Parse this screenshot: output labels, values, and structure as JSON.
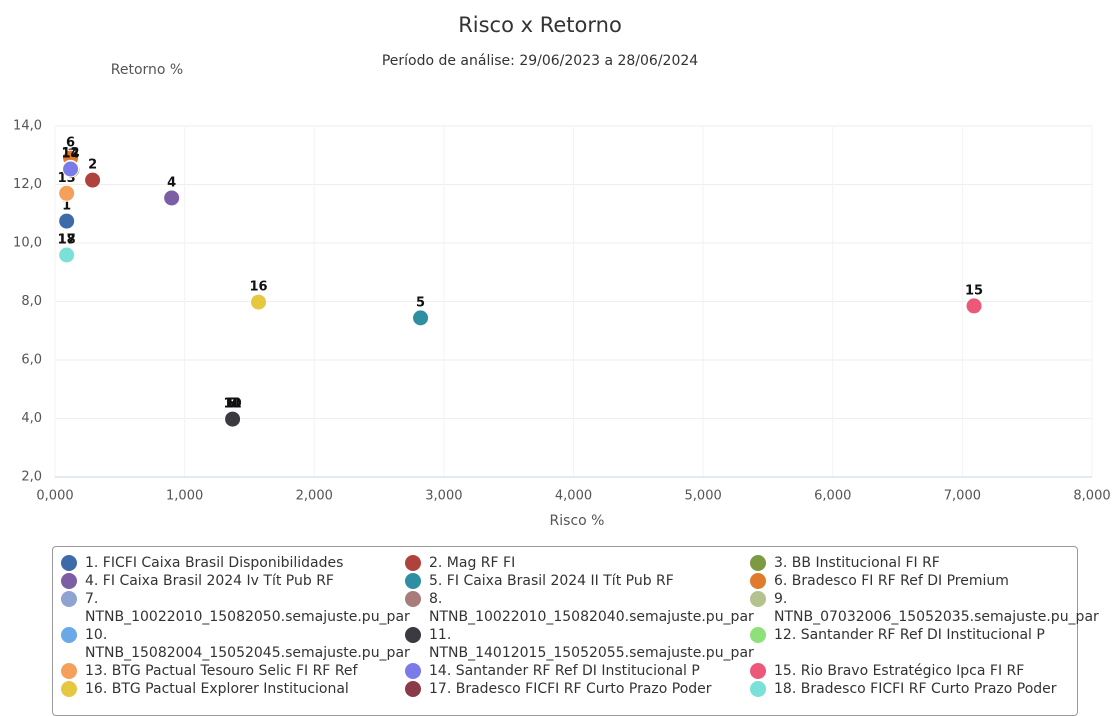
{
  "chart_data": {
    "type": "scatter",
    "title": "Risco x Retorno",
    "subtitle": "Período de análise: 29/06/2023 a 28/06/2024",
    "x_label": "Risco %",
    "y_label": "Retorno %",
    "xlim": [
      0,
      8
    ],
    "ylim": [
      2,
      14
    ],
    "xticks": [
      {
        "value": 0,
        "label": "0,000"
      },
      {
        "value": 1,
        "label": "1,000"
      },
      {
        "value": 2,
        "label": "2,000"
      },
      {
        "value": 3,
        "label": "3,000"
      },
      {
        "value": 4,
        "label": "4,000"
      },
      {
        "value": 5,
        "label": "5,000"
      },
      {
        "value": 6,
        "label": "6,000"
      },
      {
        "value": 7,
        "label": "7,000"
      },
      {
        "value": 8,
        "label": "8,000"
      }
    ],
    "yticks": [
      {
        "value": 2,
        "label": "2,0"
      },
      {
        "value": 4,
        "label": "4,0"
      },
      {
        "value": 6,
        "label": "6,0"
      },
      {
        "value": 8,
        "label": "8,0"
      },
      {
        "value": 10,
        "label": "10,0"
      },
      {
        "value": 12,
        "label": "12,0"
      },
      {
        "value": 14,
        "label": "14,0"
      }
    ],
    "grid": true,
    "series": [
      {
        "name": "1. FICFI Caixa Brasil Disponibilidades",
        "label": "1",
        "color": "#3d6aa8",
        "x": [
          0.09
        ],
        "values": [
          10.75
        ]
      },
      {
        "name": "2. Mag RF FI",
        "label": "2",
        "color": "#b0423e",
        "x": [
          0.29
        ],
        "values": [
          12.15
        ]
      },
      {
        "name": "3. BB Institucional FI RF",
        "label": "3",
        "color": "#7c9a42",
        "x": [
          0.13
        ],
        "values": [
          12.5
        ]
      },
      {
        "name": "4. FI Caixa Brasil 2024 Iv Tít Pub RF",
        "label": "4",
        "color": "#7b5ea3",
        "x": [
          0.9
        ],
        "values": [
          11.54
        ]
      },
      {
        "name": "5. FI Caixa Brasil 2024 II Tít Pub RF",
        "label": "5",
        "color": "#2e8fa3",
        "x": [
          2.82
        ],
        "values": [
          7.44
        ]
      },
      {
        "name": "6. Bradesco FI RF Ref DI Premium",
        "label": "6",
        "color": "#e07b2e",
        "x": [
          0.12
        ],
        "values": [
          12.9
        ]
      },
      {
        "name": "7. NTNB_10022010_15082050.semajuste.pu_par",
        "label": "7",
        "color": "#8ea3cf",
        "x": [
          1.37
        ],
        "values": [
          3.98
        ]
      },
      {
        "name": "8. NTNB_10022010_15082040.semajuste.pu_par",
        "label": "8",
        "color": "#a87c7a",
        "x": [
          1.37
        ],
        "values": [
          3.98
        ]
      },
      {
        "name": "9. NTNB_07032006_15052035.semajuste.pu_par",
        "label": "9",
        "color": "#b3c28e",
        "x": [
          1.37
        ],
        "values": [
          3.98
        ]
      },
      {
        "name": "10. NTNB_15082004_15052045.semajuste.pu_par",
        "label": "10",
        "color": "#6aa9e8",
        "x": [
          1.37
        ],
        "values": [
          3.98
        ]
      },
      {
        "name": "11. NTNB_14012015_15052055.semajuste.pu_par",
        "label": "11",
        "color": "#3a3a40",
        "x": [
          1.37
        ],
        "values": [
          3.98
        ]
      },
      {
        "name": "12. Santander RF Ref DI Institucional P",
        "label": "12",
        "color": "#8ee07a",
        "x": [
          0.12
        ],
        "values": [
          12.55
        ]
      },
      {
        "name": "13. BTG Pactual Tesouro Selic FI RF Ref",
        "label": "13",
        "color": "#f5a05a",
        "x": [
          0.09
        ],
        "values": [
          11.7
        ]
      },
      {
        "name": "14. Santander RF Ref DI Institucional P",
        "label": "14",
        "color": "#7a7ae8",
        "x": [
          0.12
        ],
        "values": [
          12.53
        ]
      },
      {
        "name": "15. Rio Bravo Estratégico Ipca FI RF",
        "label": "15",
        "color": "#ec5878",
        "x": [
          7.09
        ],
        "values": [
          7.85
        ]
      },
      {
        "name": "16. BTG Pactual Explorer Institucional",
        "label": "16",
        "color": "#e6c840",
        "x": [
          1.57
        ],
        "values": [
          7.98
        ]
      },
      {
        "name": "17. Bradesco FICFI RF Curto Prazo Poder",
        "label": "17",
        "color": "#8a3a48",
        "x": [
          0.09
        ],
        "values": [
          9.59
        ]
      },
      {
        "name": "18. Bradesco FICFI RF Curto Prazo Poder",
        "label": "18",
        "color": "#7ae0d8",
        "x": [
          0.09
        ],
        "values": [
          9.59
        ]
      }
    ]
  }
}
